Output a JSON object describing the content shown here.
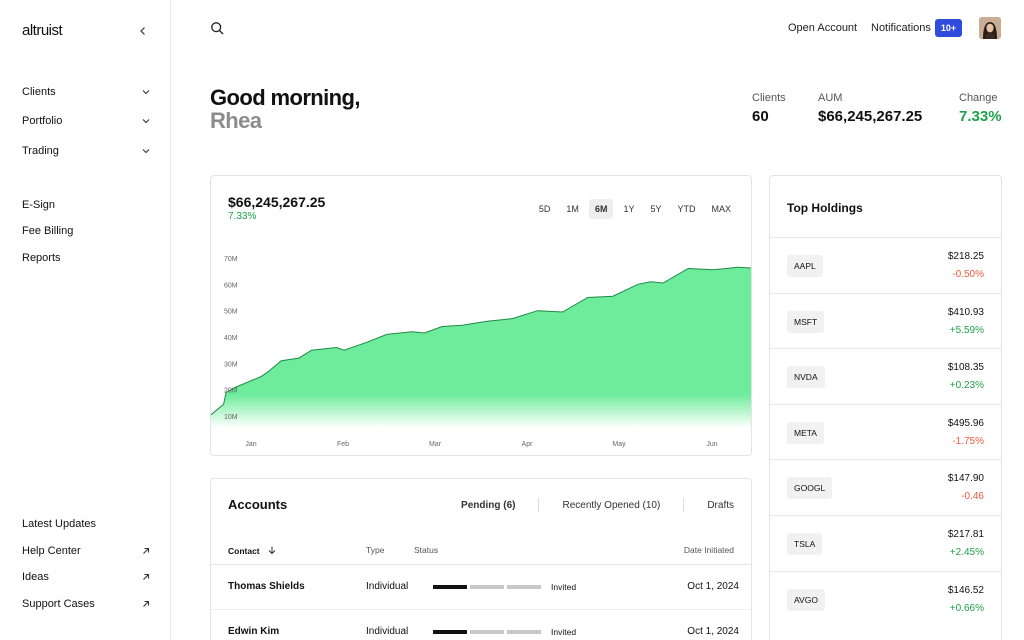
{
  "brand": "altruist",
  "nav": {
    "main": [
      "Clients",
      "Portfolio",
      "Trading"
    ],
    "secondary": [
      "E-Sign",
      "Fee Billing",
      "Reports"
    ],
    "bottom": [
      "Latest Updates",
      "Help Center",
      "Ideas",
      "Support Cases"
    ]
  },
  "topbar": {
    "open_account": "Open Account",
    "notifications": "Notifications",
    "badge": "10+"
  },
  "greeting": {
    "line1": "Good morning,",
    "name": "Rhea"
  },
  "stats": {
    "clients_label": "Clients",
    "clients_value": "60",
    "aum_label": "AUM",
    "aum_value": "$66,245,267.25",
    "change_label": "Change",
    "change_value": "7.33%"
  },
  "colors": {
    "accent": "#2f4cdd",
    "positive": "#1ea14a",
    "negative": "#ef5a3c",
    "chart_fill": "#6eec9b"
  },
  "chart_data": {
    "type": "area",
    "total": "$66,245,267.25",
    "change": "7.33%",
    "ranges": [
      "5D",
      "1M",
      "6M",
      "1Y",
      "5Y",
      "YTD",
      "MAX"
    ],
    "active_range": "6M",
    "y_ticks": [
      "70M",
      "60M",
      "50M",
      "40M",
      "30M",
      "20M",
      "10M"
    ],
    "x_ticks": [
      "Jan",
      "Feb",
      "Mar",
      "Apr",
      "May",
      "Jun"
    ],
    "ylim": [
      10,
      70
    ],
    "points": [
      [
        0.0,
        10.5
      ],
      [
        0.05,
        14.5
      ],
      [
        0.06,
        19
      ],
      [
        0.1,
        21
      ],
      [
        0.2,
        25
      ],
      [
        0.23,
        27
      ],
      [
        0.28,
        31
      ],
      [
        0.35,
        32
      ],
      [
        0.4,
        35
      ],
      [
        0.5,
        36
      ],
      [
        0.53,
        35
      ],
      [
        0.62,
        38
      ],
      [
        0.7,
        41
      ],
      [
        0.8,
        42
      ],
      [
        0.85,
        41.5
      ],
      [
        0.92,
        44
      ],
      [
        1.0,
        44.5
      ],
      [
        1.1,
        46
      ],
      [
        1.2,
        47
      ],
      [
        1.3,
        50
      ],
      [
        1.4,
        49.5
      ],
      [
        1.5,
        55
      ],
      [
        1.6,
        55.5
      ],
      [
        1.7,
        60
      ],
      [
        1.75,
        61
      ],
      [
        1.8,
        60.5
      ],
      [
        1.9,
        66
      ],
      [
        2.0,
        65.5
      ],
      [
        2.05,
        66
      ],
      [
        2.1,
        66.5
      ],
      [
        2.15,
        66.2
      ]
    ]
  },
  "accounts": {
    "title": "Accounts",
    "tabs": [
      "Pending (6)",
      "Recently Opened (10)",
      "Drafts"
    ],
    "columns": {
      "contact": "Contact",
      "type": "Type",
      "status": "Status",
      "date": "Date Initiated"
    },
    "rows": [
      {
        "name": "Thomas Shields",
        "type": "Individual",
        "status": "Invited",
        "date": "Oct 1, 2024",
        "progress": 1
      },
      {
        "name": "Edwin Kim",
        "type": "Individual",
        "status": "Invited",
        "date": "Oct 1, 2024",
        "progress": 1
      }
    ]
  },
  "holdings": {
    "title": "Top Holdings",
    "items": [
      {
        "ticker": "AAPL",
        "price": "$218.25",
        "change": "-0.50%",
        "dir": "down"
      },
      {
        "ticker": "MSFT",
        "price": "$410.93",
        "change": "+5.59%",
        "dir": "up"
      },
      {
        "ticker": "NVDA",
        "price": "$108.35",
        "change": "+0.23%",
        "dir": "up"
      },
      {
        "ticker": "META",
        "price": "$495.96",
        "change": "-1.75%",
        "dir": "down"
      },
      {
        "ticker": "GOOGL",
        "price": "$147.90",
        "change": "-0.46",
        "dir": "down"
      },
      {
        "ticker": "TSLA",
        "price": "$217.81",
        "change": "+2.45%",
        "dir": "up"
      },
      {
        "ticker": "AVGO",
        "price": "$146.52",
        "change": "+0.66%",
        "dir": "up"
      }
    ]
  }
}
